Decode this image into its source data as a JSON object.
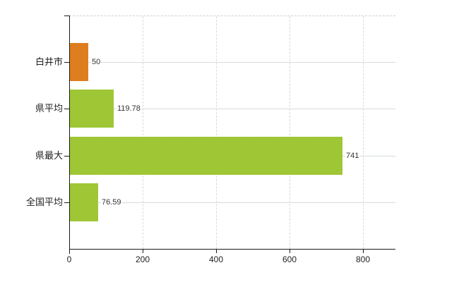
{
  "chart_data": {
    "type": "bar",
    "orientation": "horizontal",
    "title": "",
    "xlabel": "",
    "ylabel": "",
    "categories": [
      "白井市",
      "県平均",
      "県最大",
      "全国平均"
    ],
    "values": [
      50,
      119.78,
      741,
      76.59
    ],
    "value_labels": [
      "50",
      "119.78",
      "741",
      "76.59"
    ],
    "bar_styles": [
      "orange",
      "green",
      "green",
      "green"
    ],
    "x_ticks": [
      0,
      200,
      400,
      600,
      800
    ],
    "x_tick_labels": [
      "0",
      "200",
      "400",
      "600",
      "800"
    ],
    "xlim": [
      0,
      888
    ],
    "grid": true,
    "legend": "none"
  },
  "colors": {
    "bar_orange": "#e0801f",
    "bar_orange_dark": "#d06f16",
    "bar_orange_light": "#ec8c28",
    "bar_green": "#a5ca38",
    "bar_green_dark": "#8fbc27",
    "bar_green_light": "#aed143",
    "grid_vertical": "#d9d9d9",
    "grid_horizontal": "#d3ddd3",
    "axis": "#1a1a1a",
    "text": "#222222",
    "value_text": "#333333",
    "background": "#ffffff"
  }
}
